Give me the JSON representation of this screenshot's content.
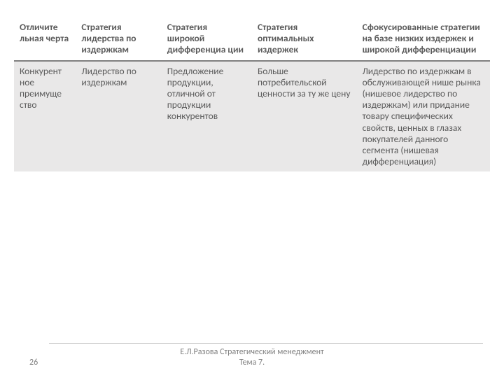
{
  "table": {
    "columns": [
      "Отличите льная черта",
      "Стратегия лидерства по издержкам",
      "Стратегия широкой дифференциа ции",
      "Стратегия оптимальных издержек",
      "Сфокусированные стратегии на базе низких издержек и широкой дифференциации"
    ],
    "rows": [
      [
        "Конкурент ное преимуще ство",
        "Лидерство по издержкам",
        "Предложение продукции, отличной от продукции конкурентов",
        "Больше потребительской ценности за ту же цену",
        "Лидерство по издержкам в обслуживающей нише рынка (нишевое лидерство по издержкам) или придание товару специфических свойств, ценных в глазах покупателей данного сегмента (нишевая дифференциация)"
      ]
    ],
    "col_widths_pct": [
      13,
      18,
      19,
      22,
      28
    ],
    "header_bg": "#ffffff",
    "header_color": "#5a5a5a",
    "header_border_bottom": "#808080",
    "row_alt_bg": "#e9e8e8",
    "text_color": "#5a5a5a",
    "font_size": 13.5
  },
  "footer": {
    "page_number": "26",
    "line1": "Е.Л.Разова Стратегический менеджмент",
    "line2": "Тема 7.",
    "color": "#808080",
    "line_color": "#cccccc"
  }
}
